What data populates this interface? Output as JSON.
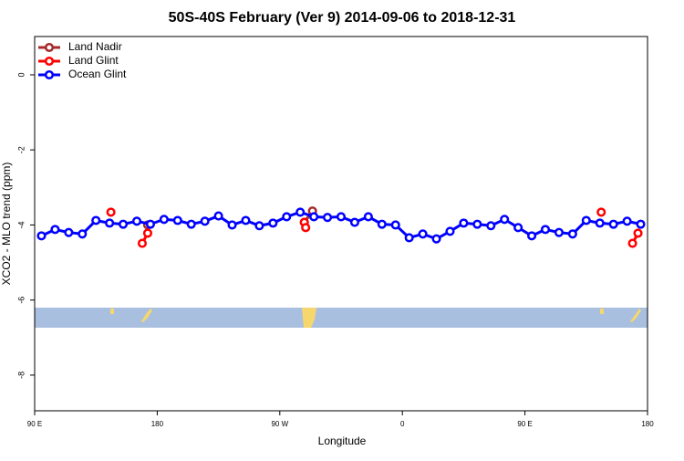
{
  "chart_data": {
    "type": "line",
    "title": "50S-40S February (Ver 9)   2014-09-06 to 2018-12-31",
    "xlabel": "Longitude",
    "ylabel": "XCO2 - MLO trend (ppm)",
    "xlim": [
      90,
      540
    ],
    "ylim": [
      -8.95,
      1.02
    ],
    "xticks": [
      {
        "value": 90,
        "label": "90 E"
      },
      {
        "value": 180,
        "label": "180"
      },
      {
        "value": 270,
        "label": "90 W"
      },
      {
        "value": 360,
        "label": "0"
      },
      {
        "value": 450,
        "label": "90 E"
      },
      {
        "value": 540,
        "label": "180"
      }
    ],
    "yticks": [
      0,
      -2,
      -4,
      -6,
      -8
    ],
    "legend": "top-left",
    "series": [
      {
        "name": "Land Nadir",
        "color": "#a52a2a",
        "x": [
          173,
          288,
          294
        ],
        "values": [
          -4.0,
          -3.93,
          -3.63
        ]
      },
      {
        "name": "Land Glint",
        "color": "#ff0000",
        "x": [
          146,
          169,
          173,
          288,
          289,
          506,
          529,
          533
        ],
        "values": [
          -3.66,
          -4.49,
          -4.22,
          -3.93,
          -4.07,
          -3.66,
          -4.49,
          -4.22
        ]
      },
      {
        "name": "Ocean Glint",
        "color": "#0000ff",
        "x": [
          95,
          105,
          115,
          125,
          135,
          145,
          155,
          165,
          175,
          185,
          195,
          205,
          215,
          225,
          235,
          245,
          255,
          265,
          275,
          285,
          295,
          305,
          315,
          325,
          335,
          345,
          355,
          365,
          375,
          385,
          395,
          405,
          415,
          425,
          435,
          445,
          455,
          465,
          475,
          485,
          495,
          505,
          515,
          525,
          535
        ],
        "values": [
          -4.29,
          -4.12,
          -4.2,
          -4.24,
          -3.88,
          -3.95,
          -3.98,
          -3.9,
          -3.98,
          -3.85,
          -3.88,
          -3.98,
          -3.9,
          -3.76,
          -4.0,
          -3.88,
          -4.02,
          -3.95,
          -3.78,
          -3.66,
          -3.78,
          -3.8,
          -3.78,
          -3.93,
          -3.78,
          -3.98,
          -4.0,
          -4.34,
          -4.24,
          -4.37,
          -4.17,
          -3.95,
          -3.98,
          -4.02,
          -3.85,
          -4.07,
          -4.29,
          -4.12,
          -4.2,
          -4.24,
          -3.88,
          -3.95,
          -3.98,
          -3.9,
          -3.98
        ]
      }
    ]
  }
}
